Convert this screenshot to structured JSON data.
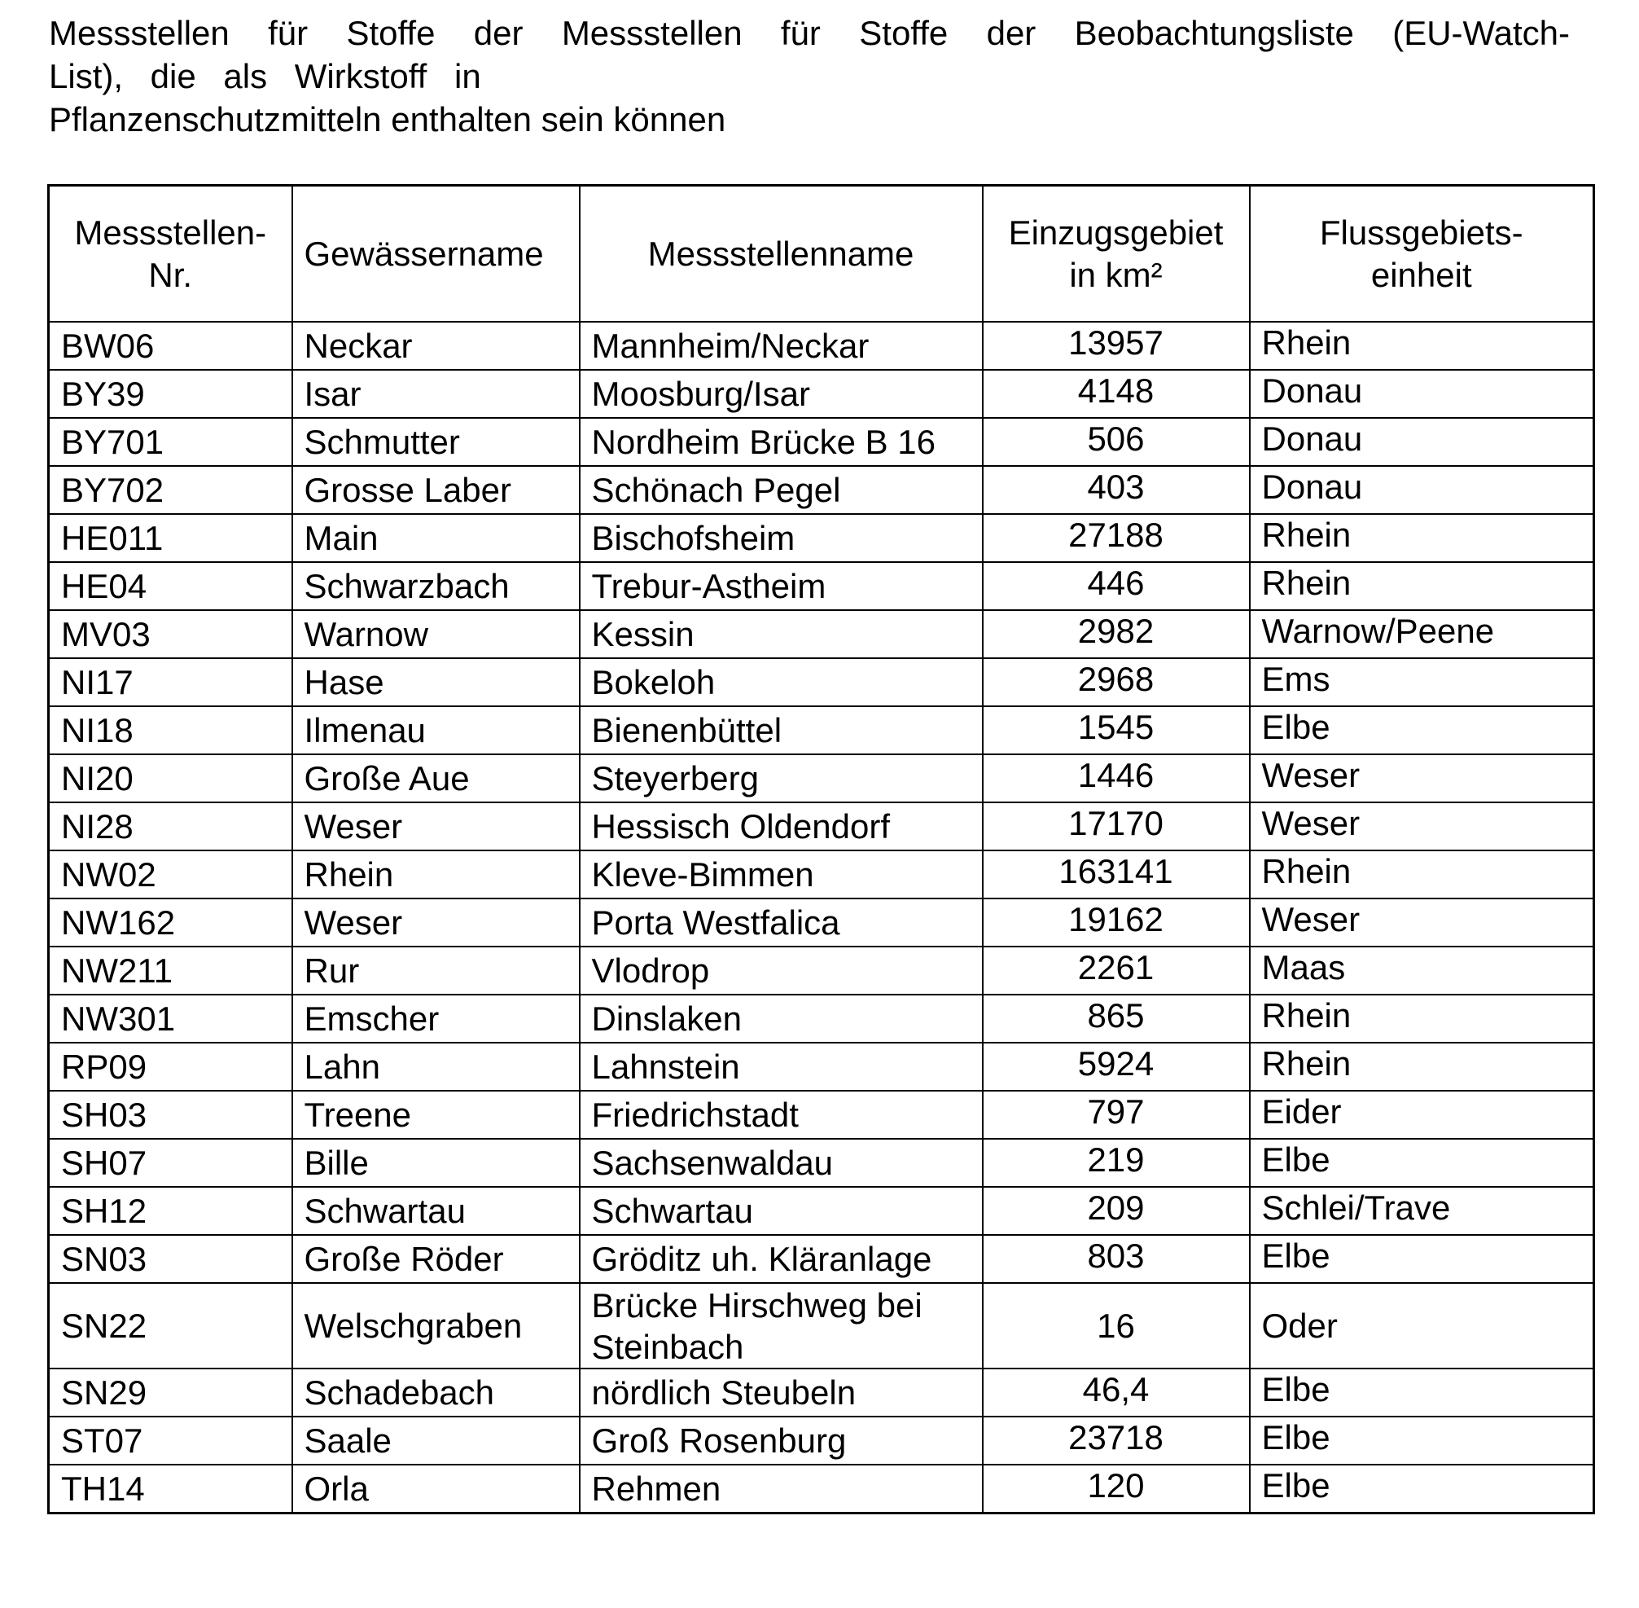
{
  "title": {
    "line1": "Messstellen für Stoffe der Messstellen für Stoffe der Beobachtungsliste (EU-Watch-",
    "line2": "List), die als Wirkstoff in",
    "line3": "Pflanzenschutzmitteln enthalten sein können"
  },
  "table": {
    "headers": [
      "Messstellen-Nr.",
      "Gewässername",
      "Messstellenname",
      "Einzugsgebiet in km²",
      "Flussgebiets-einheit"
    ],
    "rows": [
      [
        "BW06",
        "Neckar",
        "Mannheim/Neckar",
        "13957",
        "Rhein"
      ],
      [
        "BY39",
        "Isar",
        "Moosburg/Isar",
        "4148",
        "Donau"
      ],
      [
        "BY701",
        "Schmutter",
        "Nordheim Brücke B 16",
        "506",
        "Donau"
      ],
      [
        "BY702",
        "Grosse Laber",
        "Schönach Pegel",
        "403",
        "Donau"
      ],
      [
        "HE011",
        "Main",
        "Bischofsheim",
        "27188",
        "Rhein"
      ],
      [
        "HE04",
        "Schwarzbach",
        "Trebur-Astheim",
        "446",
        "Rhein"
      ],
      [
        "MV03",
        "Warnow",
        "Kessin",
        "2982",
        "Warnow/Peene"
      ],
      [
        "NI17",
        "Hase",
        "Bokeloh",
        "2968",
        "Ems"
      ],
      [
        "NI18",
        "Ilmenau",
        "Bienenbüttel",
        "1545",
        "Elbe"
      ],
      [
        "NI20",
        "Große Aue",
        "Steyerberg",
        "1446",
        "Weser"
      ],
      [
        "NI28",
        "Weser",
        "Hessisch Oldendorf",
        "17170",
        "Weser"
      ],
      [
        "NW02",
        "Rhein",
        "Kleve-Bimmen",
        "163141",
        "Rhein"
      ],
      [
        "NW162",
        "Weser",
        "Porta Westfalica",
        "19162",
        "Weser"
      ],
      [
        "NW211",
        "Rur",
        "Vlodrop",
        "2261",
        "Maas"
      ],
      [
        "NW301",
        "Emscher",
        "Dinslaken",
        "865",
        "Rhein"
      ],
      [
        "RP09",
        "Lahn",
        "Lahnstein",
        "5924",
        "Rhein"
      ],
      [
        "SH03",
        "Treene",
        "Friedrichstadt",
        "797",
        "Eider"
      ],
      [
        "SH07",
        "Bille",
        "Sachsenwaldau",
        "219",
        "Elbe"
      ],
      [
        "SH12",
        "Schwartau",
        "Schwartau",
        "209",
        "Schlei/Trave"
      ],
      [
        "SN03",
        "Große Röder",
        "Gröditz uh. Kläranlage",
        "803",
        "Elbe"
      ],
      [
        "SN22",
        "Welschgraben",
        "Brücke Hirschweg bei Steinbach",
        "16",
        "Oder"
      ],
      [
        "SN29",
        "Schadebach",
        "nördlich Steubeln",
        "46,4",
        "Elbe"
      ],
      [
        "ST07",
        "Saale",
        "Groß Rosenburg",
        "23718",
        "Elbe"
      ],
      [
        "TH14",
        "Orla",
        "Rehmen",
        "120",
        "Elbe"
      ]
    ]
  }
}
